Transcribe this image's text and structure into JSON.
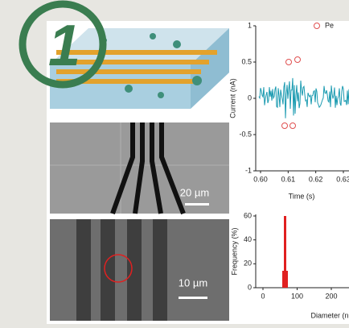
{
  "badge": "1",
  "panels": {
    "scale_bar_top": "20 µm",
    "scale_bar_bottom": "10 µm",
    "current_plot": {
      "legend": "Pe",
      "y_label": "Current (nA)",
      "x_label": "Time (s)",
      "yticks": [
        "1",
        "0.5",
        "0",
        "-0.5",
        "-1"
      ],
      "xticks": [
        "0.60",
        "0.61",
        "0.62",
        "0.63"
      ]
    },
    "histogram": {
      "y_label": "Frequency (%)",
      "x_label": "Diameter (n",
      "yticks": [
        "60",
        "40",
        "20",
        "0"
      ],
      "xticks": [
        "0",
        "100",
        "200"
      ]
    }
  }
}
